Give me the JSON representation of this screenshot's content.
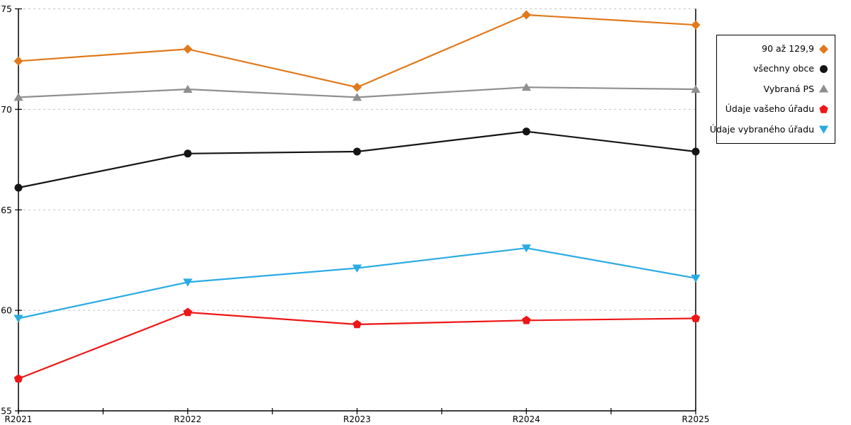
{
  "chart_data": {
    "type": "line",
    "title": "",
    "xlabel": "",
    "ylabel": "",
    "categories": [
      "R2021",
      "R2022",
      "R2023",
      "R2024",
      "R2025"
    ],
    "series": [
      {
        "name": "90 až 129,9",
        "color": "#e07a1c",
        "marker": "diamond",
        "values": [
          72.4,
          73.0,
          71.1,
          74.7,
          74.2
        ]
      },
      {
        "name": "všechny obce",
        "color": "#141414",
        "marker": "circle",
        "values": [
          66.1,
          67.8,
          67.9,
          68.9,
          67.9
        ]
      },
      {
        "name": "Vybraná PS",
        "color": "#8f8f8f",
        "marker": "triangle-up",
        "values": [
          70.6,
          71.0,
          70.6,
          71.1,
          71.0
        ]
      },
      {
        "name": "Údaje vašeho úřadu",
        "color": "#ee1616",
        "marker": "pentagon",
        "values": [
          56.6,
          59.9,
          59.3,
          59.5,
          59.6
        ]
      },
      {
        "name": "Údaje vybraného úřadu",
        "color": "#29abe2",
        "marker": "triangle-down",
        "values": [
          59.6,
          61.4,
          62.1,
          63.1,
          61.6
        ]
      }
    ],
    "ylim": [
      55,
      75
    ],
    "yticks": [
      55,
      60,
      65,
      70,
      75
    ],
    "ytick_labels": [
      "55",
      "60",
      "65",
      "70",
      "75"
    ],
    "grid": "horizontal-dashed",
    "x_minor_ticks": true,
    "legend_position": "right"
  },
  "colors": {
    "grid": "#c5c5c5",
    "axis": "#000000",
    "background": "#ffffff"
  }
}
